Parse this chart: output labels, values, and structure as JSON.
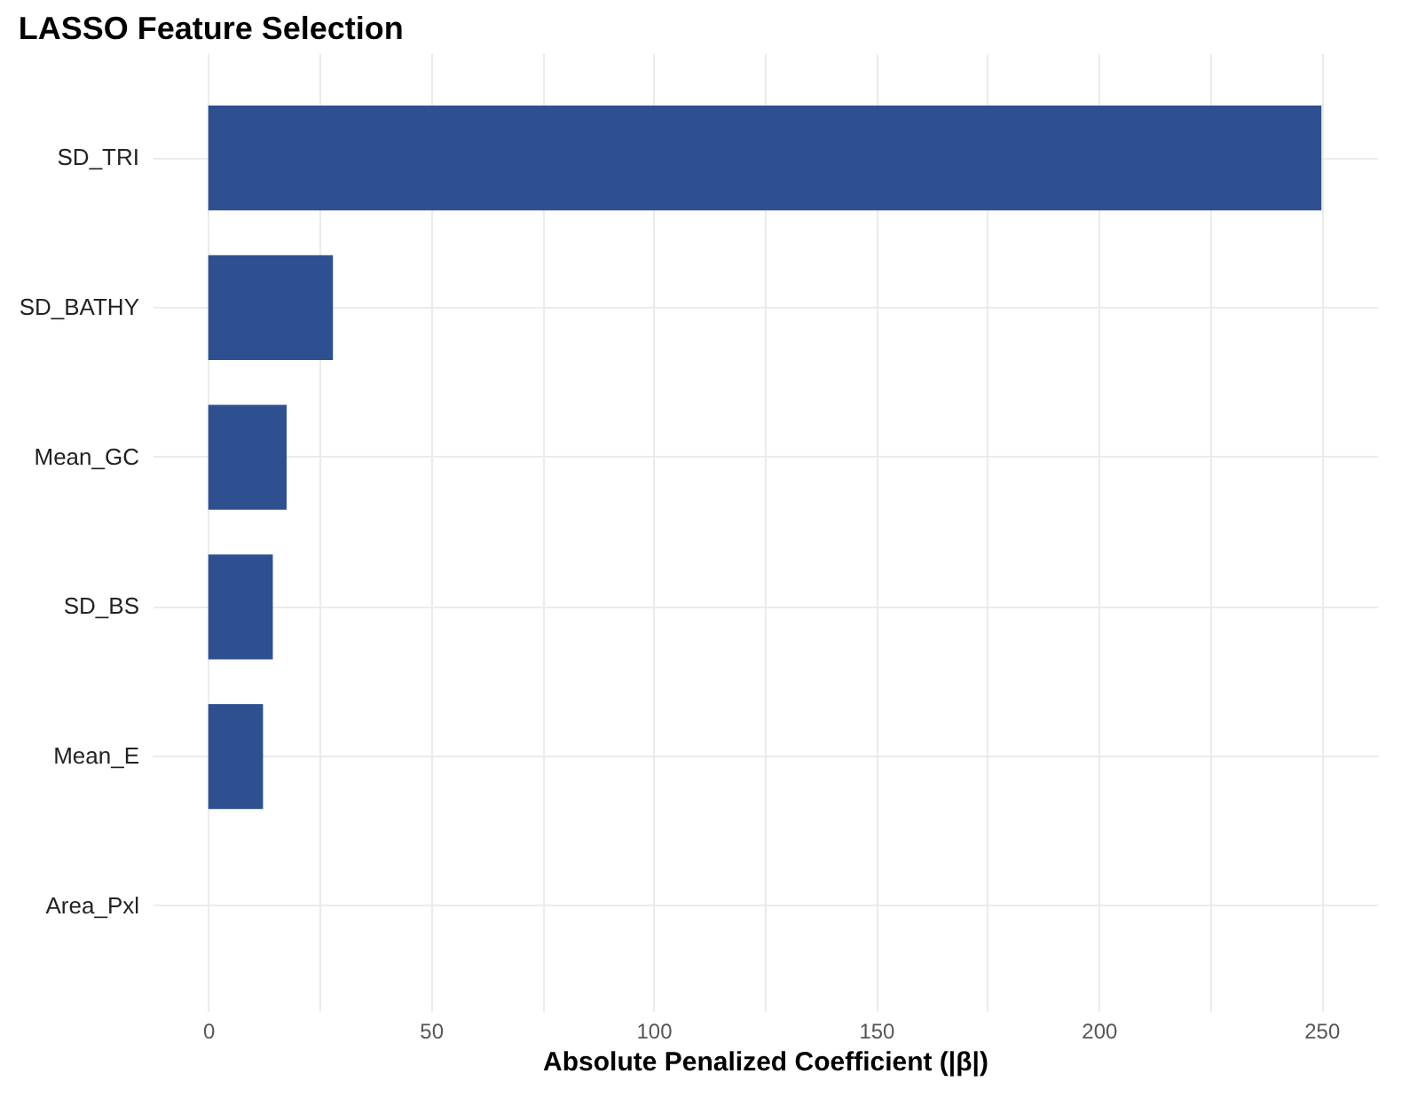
{
  "chart_data": {
    "type": "bar",
    "orientation": "horizontal",
    "title": "LASSO Feature Selection",
    "xlabel": "Absolute Penalized Coefficient (|β|)",
    "categories": [
      "SD_TRI",
      "SD_BATHY",
      "Mean_GC",
      "SD_BS",
      "Mean_E",
      "Area_Pxl"
    ],
    "values": [
      250,
      28,
      17.6,
      14.5,
      12.3,
      0
    ],
    "color": "#2e5090",
    "xlim": [
      -12.5,
      262.5
    ],
    "xticks": [
      0,
      {
        "value": 25,
        "label": null
      },
      50,
      {
        "value": 75,
        "label": null
      },
      100,
      {
        "value": 125,
        "label": null
      },
      150,
      {
        "value": 175,
        "label": null
      },
      200,
      {
        "value": 225,
        "label": null
      },
      250
    ],
    "grid": true
  }
}
